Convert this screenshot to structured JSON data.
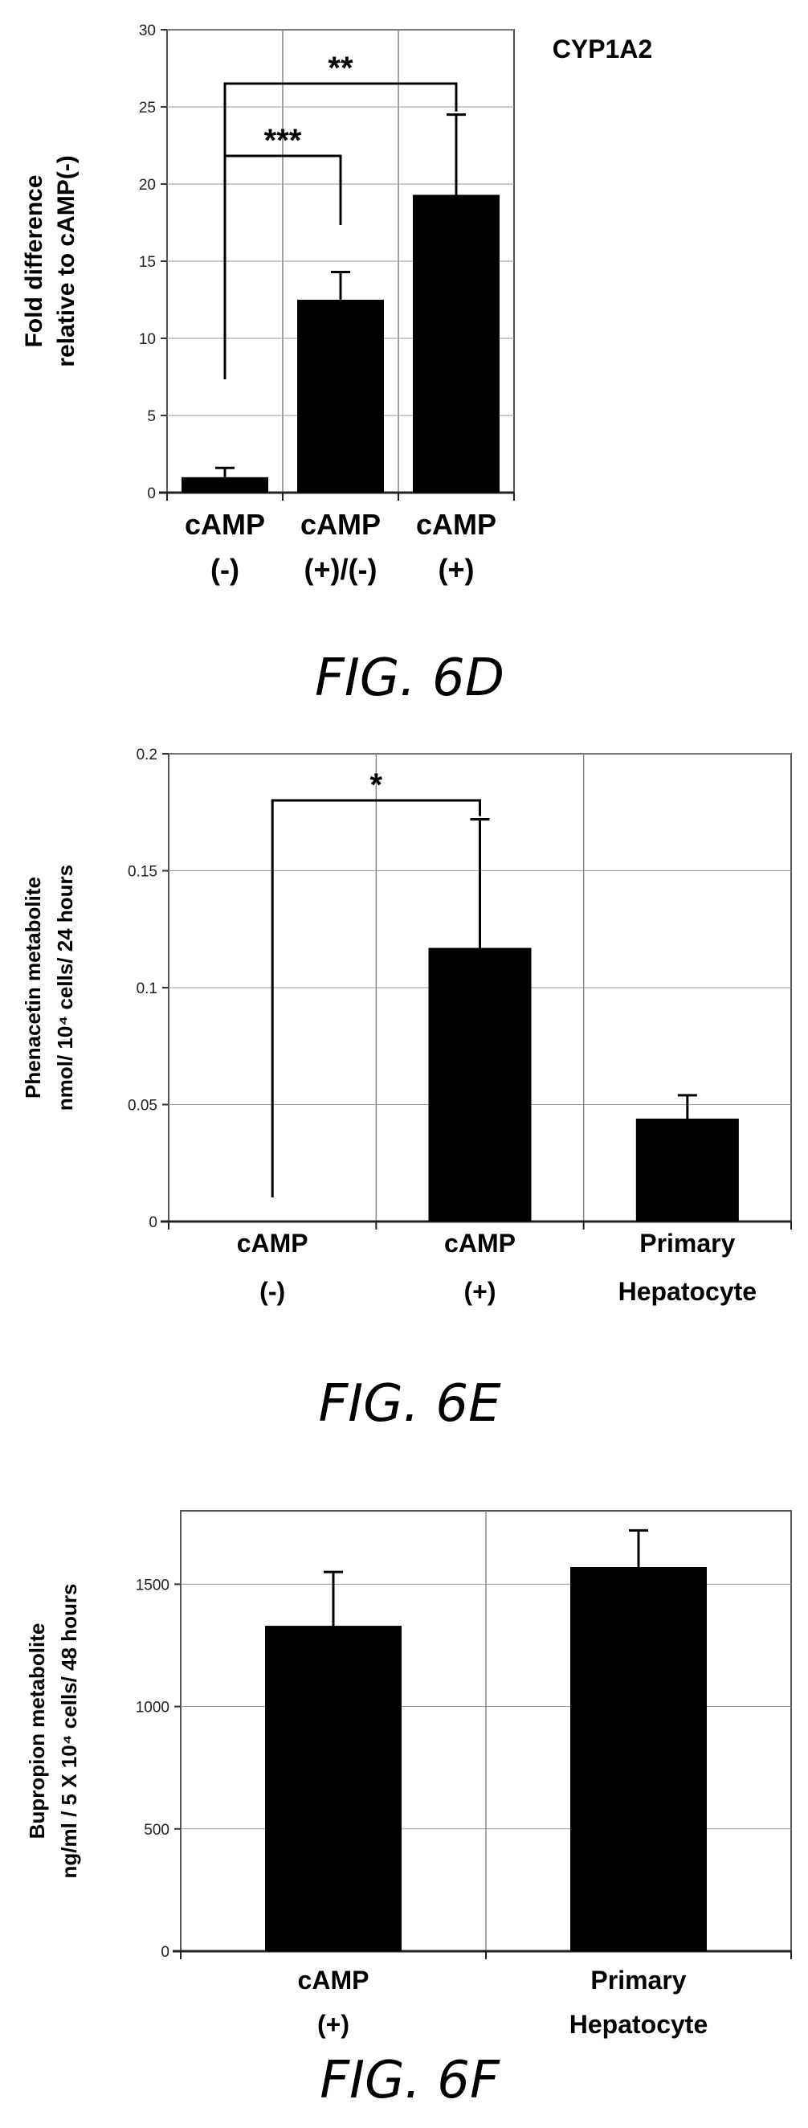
{
  "chart_data": [
    {
      "type": "bar",
      "figure_label": "FIG. 6D",
      "annotation": "CYP1A2",
      "ylabel_lines": [
        "Fold difference",
        "relative to cAMP(-)"
      ],
      "ylim": [
        0,
        30
      ],
      "yticks": [
        0,
        5,
        10,
        15,
        20,
        25,
        30
      ],
      "categories": [
        [
          "cAMP",
          "(-)"
        ],
        [
          "cAMP",
          "(+)/(-)"
        ],
        [
          "cAMP",
          "(+)"
        ]
      ],
      "values": [
        1.0,
        12.5,
        19.3
      ],
      "errors": [
        0.6,
        1.8,
        5.2
      ],
      "grid": true,
      "significance": [
        {
          "from": 0,
          "to": 2,
          "label": "**"
        },
        {
          "from": 0,
          "to": 1,
          "label": "***"
        }
      ]
    },
    {
      "type": "bar",
      "figure_label": "FIG. 6E",
      "ylabel_lines": [
        "Phenacetin metabolite",
        "nmol/ 10⁴ cells/ 24 hours"
      ],
      "ylim": [
        0,
        0.2
      ],
      "yticks": [
        0,
        0.05,
        0.1,
        0.15,
        0.2
      ],
      "categories": [
        [
          "cAMP",
          "(-)"
        ],
        [
          "cAMP",
          "(+)"
        ],
        [
          "Primary",
          "Hepatocyte"
        ]
      ],
      "values": [
        0,
        0.117,
        0.044
      ],
      "errors": [
        0,
        0.055,
        0.01
      ],
      "grid": true,
      "significance": [
        {
          "from": 0,
          "to": 1,
          "label": "*"
        }
      ]
    },
    {
      "type": "bar",
      "figure_label": "FIG. 6F",
      "ylabel_lines": [
        "Bupropion metabolite",
        "ng/ml / 5 X 10⁴ cells/ 48 hours"
      ],
      "ylim": [
        0,
        1800
      ],
      "yticks": [
        0,
        500,
        1000,
        1500
      ],
      "categories": [
        [
          "cAMP",
          "(+)"
        ],
        [
          "Primary",
          "Hepatocyte"
        ]
      ],
      "values": [
        1330,
        1570
      ],
      "errors": [
        220,
        150
      ],
      "grid": true
    }
  ]
}
